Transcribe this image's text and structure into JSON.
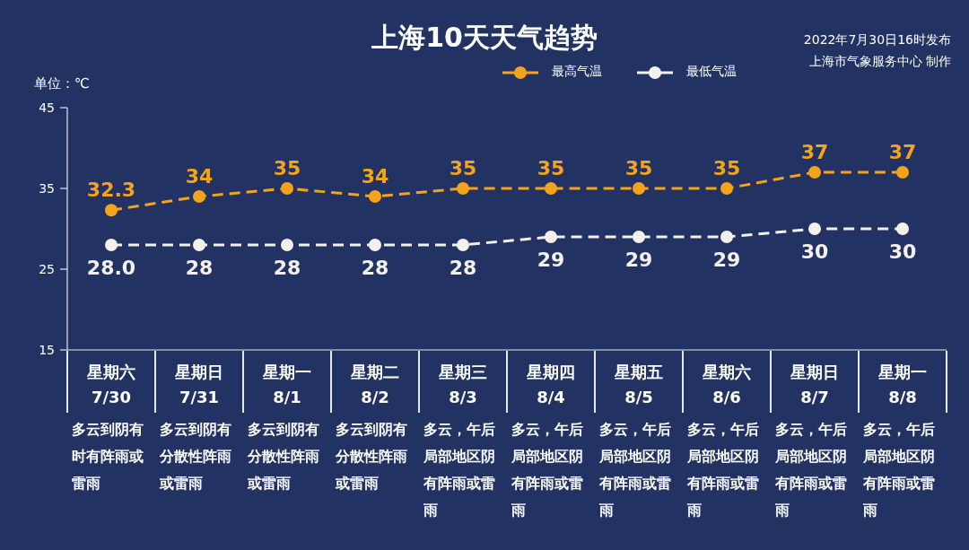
{
  "chart_data": {
    "type": "line",
    "title": "上海10天天气趋势",
    "ylabel": "单位：℃",
    "annotations": [
      "2022年7月30日16时发布",
      "上海市气象服务中心 制作",
      "多云到阴有时有阵雨或雷雨",
      "多云到阴有分散性阵雨或雷雨",
      "多云到阴有分散性阵雨或雷雨",
      "多云到阴有分散性阵雨或雷雨",
      "多云，午后局部地区阴有阵雨或雷雨",
      "多云，午后局部地区阴有阵雨或雷雨",
      "多云，午后局部地区阴有阵雨或雷雨",
      "多云，午后局部地区阴有阵雨或雷雨",
      "多云，午后局部地区阴有阵雨或雷雨",
      "多云，午后局部地区阴有阵雨或雷雨"
    ],
    "categories": [
      "星期六\n7/30",
      "星期日\n7/31",
      "星期一\n8/1",
      "星期二\n8/2",
      "星期三\n8/3",
      "星期四\n8/4",
      "星期五\n8/5",
      "星期六\n8/6",
      "星期日\n8/7",
      "星期一\n8/8"
    ],
    "series": [
      {
        "name": "最高气温",
        "color": "#f5a31a",
        "values": [
          32.3,
          34,
          35,
          34,
          35,
          35,
          35,
          35,
          37,
          37
        ],
        "value_labels": [
          "32.3",
          "34",
          "35",
          "34",
          "35",
          "35",
          "35",
          "35",
          "37",
          "37"
        ]
      },
      {
        "name": "最低气温",
        "color": "#f4f1ec",
        "values": [
          28.0,
          28,
          28,
          28,
          28,
          29,
          29,
          29,
          30,
          30
        ],
        "value_labels": [
          "28.0",
          "28",
          "28",
          "28",
          "28",
          "29",
          "29",
          "29",
          "30",
          "30"
        ]
      }
    ],
    "ylim": [
      15,
      45
    ],
    "yticks": [
      15,
      25,
      35,
      45
    ],
    "grid": false,
    "legend": "top",
    "marker": "circle",
    "line_style": "dashed"
  }
}
